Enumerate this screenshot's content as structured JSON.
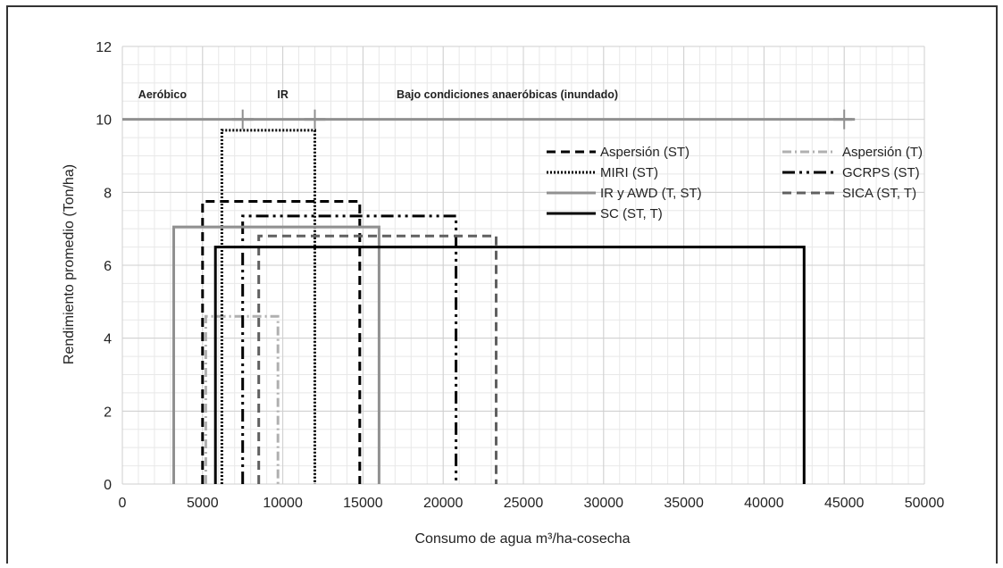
{
  "chart_data": {
    "type": "line",
    "title": "",
    "xlabel": "Consumo de agua m³/ha-cosecha",
    "ylabel": "Rendimiento promedio (Ton/ha)",
    "xlim": [
      0,
      50000
    ],
    "ylim": [
      0,
      12
    ],
    "x_ticks": [
      0,
      5000,
      10000,
      15000,
      20000,
      25000,
      30000,
      35000,
      40000,
      45000,
      50000
    ],
    "y_ticks": [
      0,
      2,
      4,
      6,
      8,
      10,
      12
    ],
    "grid": true,
    "region_labels": [
      {
        "text": "Aeróbico",
        "x": 2500,
        "y": 10.7
      },
      {
        "text": "IR",
        "x": 10000,
        "y": 10.7
      },
      {
        "text": "Bajo condiciones anaeróbicas (inundado)",
        "x": 24000,
        "y": 10.7
      }
    ],
    "region_line": {
      "y": 10,
      "x_from": 0,
      "x_to": 45500,
      "markers": [
        7500,
        12000,
        45000
      ],
      "color": "#909090"
    },
    "series": [
      {
        "name": "Aspersión (ST)",
        "style": "dashed",
        "color": "#000000",
        "x": [
          5000,
          5000,
          14800,
          14800
        ],
        "y": [
          0,
          7.75,
          7.75,
          0
        ]
      },
      {
        "name": "Aspersión (T)",
        "style": "dashdot",
        "color": "#b0b0b0",
        "x": [
          5200,
          5200,
          9700,
          9700
        ],
        "y": [
          0,
          4.6,
          4.6,
          0
        ]
      },
      {
        "name": "MIRI (ST)",
        "style": "dotted",
        "color": "#000000",
        "x": [
          6200,
          6200,
          12000,
          12000
        ],
        "y": [
          0,
          9.7,
          9.7,
          0
        ]
      },
      {
        "name": "GCRPS (ST)",
        "style": "dashdotdot",
        "color": "#000000",
        "x": [
          7500,
          7500,
          20800,
          20800
        ],
        "y": [
          0,
          7.35,
          7.35,
          0
        ]
      },
      {
        "name": "IR y AWD (T, ST)",
        "style": "solid",
        "color": "#909090",
        "x": [
          3200,
          3200,
          16000,
          16000
        ],
        "y": [
          0,
          7.05,
          7.05,
          0
        ]
      },
      {
        "name": "SICA (ST, T)",
        "style": "dashed",
        "color": "#606060",
        "x": [
          8500,
          8500,
          23300,
          23300
        ],
        "y": [
          0,
          6.8,
          6.8,
          0
        ]
      },
      {
        "name": "SC (ST, T)",
        "style": "solid",
        "color": "#000000",
        "x": [
          5800,
          5800,
          42500,
          42500
        ],
        "y": [
          0,
          6.5,
          6.5,
          0
        ]
      }
    ],
    "legend": {
      "placement": "upper-right-inside",
      "columns": 2
    }
  }
}
